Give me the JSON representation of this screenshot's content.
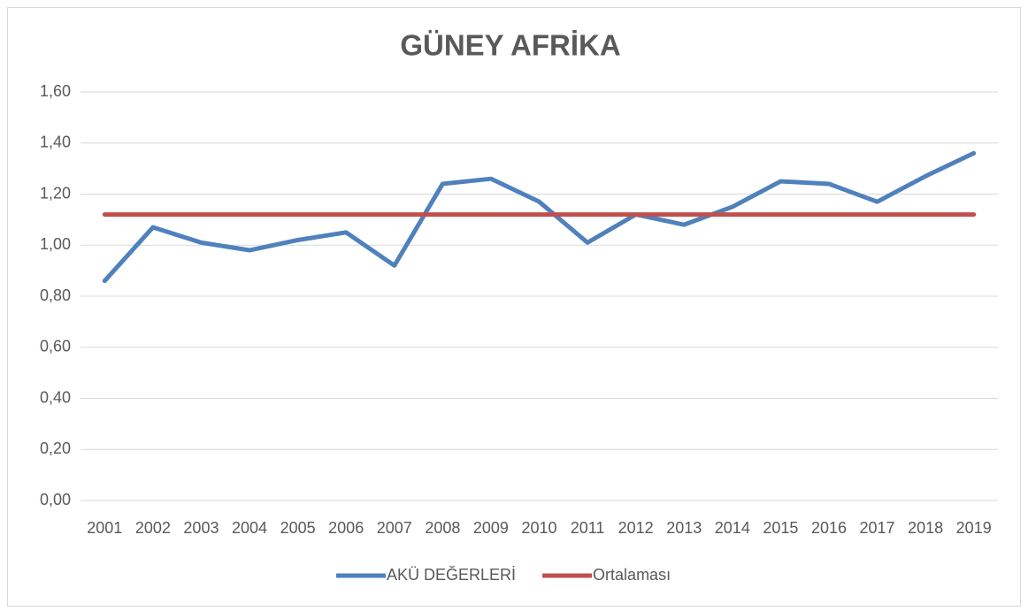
{
  "chart_data": {
    "type": "line",
    "title": "GÜNEY AFRİKA",
    "categories": [
      "2001",
      "2002",
      "2003",
      "2004",
      "2005",
      "2006",
      "2007",
      "2008",
      "2009",
      "2010",
      "2011",
      "2012",
      "2013",
      "2014",
      "2015",
      "2016",
      "2017",
      "2018",
      "2019"
    ],
    "series": [
      {
        "name": "AKÜ DEĞERLERİ",
        "color": "#4f81bd",
        "values": [
          0.86,
          1.07,
          1.01,
          0.98,
          1.02,
          1.05,
          0.92,
          1.24,
          1.26,
          1.17,
          1.01,
          1.12,
          1.08,
          1.15,
          1.25,
          1.24,
          1.17,
          1.27,
          1.36
        ]
      },
      {
        "name": "Ortalaması",
        "color": "#c0504d",
        "values": [
          1.12,
          1.12,
          1.12,
          1.12,
          1.12,
          1.12,
          1.12,
          1.12,
          1.12,
          1.12,
          1.12,
          1.12,
          1.12,
          1.12,
          1.12,
          1.12,
          1.12,
          1.12,
          1.12
        ]
      }
    ],
    "ylim": [
      0,
      1.6
    ],
    "yticks": [
      {
        "value": 0,
        "label": "0,00"
      },
      {
        "value": 0.2,
        "label": "0,20"
      },
      {
        "value": 0.4,
        "label": "0,40"
      },
      {
        "value": 0.6,
        "label": "0,60"
      },
      {
        "value": 0.8,
        "label": "0,80"
      },
      {
        "value": 1.0,
        "label": "1,00"
      },
      {
        "value": 1.2,
        "label": "1,20"
      },
      {
        "value": 1.4,
        "label": "1,40"
      },
      {
        "value": 1.6,
        "label": "1,60"
      }
    ],
    "grid": true,
    "legend": "bottom"
  }
}
